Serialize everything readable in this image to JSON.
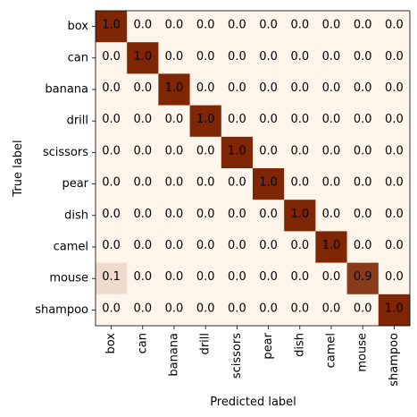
{
  "chart_data": {
    "type": "heatmap",
    "xlabel": "Predicted label",
    "ylabel": "True label",
    "x_categories": [
      "box",
      "can",
      "banana",
      "drill",
      "scissors",
      "pear",
      "dish",
      "camel",
      "mouse",
      "shampoo"
    ],
    "y_categories": [
      "box",
      "can",
      "banana",
      "drill",
      "scissors",
      "pear",
      "dish",
      "camel",
      "mouse",
      "shampoo"
    ],
    "values": [
      [
        1.0,
        0.0,
        0.0,
        0.0,
        0.0,
        0.0,
        0.0,
        0.0,
        0.0,
        0.0
      ],
      [
        0.0,
        1.0,
        0.0,
        0.0,
        0.0,
        0.0,
        0.0,
        0.0,
        0.0,
        0.0
      ],
      [
        0.0,
        0.0,
        1.0,
        0.0,
        0.0,
        0.0,
        0.0,
        0.0,
        0.0,
        0.0
      ],
      [
        0.0,
        0.0,
        0.0,
        1.0,
        0.0,
        0.0,
        0.0,
        0.0,
        0.0,
        0.0
      ],
      [
        0.0,
        0.0,
        0.0,
        0.0,
        1.0,
        0.0,
        0.0,
        0.0,
        0.0,
        0.0
      ],
      [
        0.0,
        0.0,
        0.0,
        0.0,
        0.0,
        1.0,
        0.0,
        0.0,
        0.0,
        0.0
      ],
      [
        0.0,
        0.0,
        0.0,
        0.0,
        0.0,
        0.0,
        1.0,
        0.0,
        0.0,
        0.0
      ],
      [
        0.0,
        0.0,
        0.0,
        0.0,
        0.0,
        0.0,
        0.0,
        1.0,
        0.0,
        0.0
      ],
      [
        0.1,
        0.0,
        0.0,
        0.0,
        0.0,
        0.0,
        0.0,
        0.0,
        0.9,
        0.0
      ],
      [
        0.0,
        0.0,
        0.0,
        0.0,
        0.0,
        0.0,
        0.0,
        0.0,
        0.0,
        1.0
      ]
    ],
    "value_range": [
      0,
      1
    ],
    "colormap": {
      "low": "#fff5eb",
      "high": "#7f2704"
    },
    "grid": false
  }
}
